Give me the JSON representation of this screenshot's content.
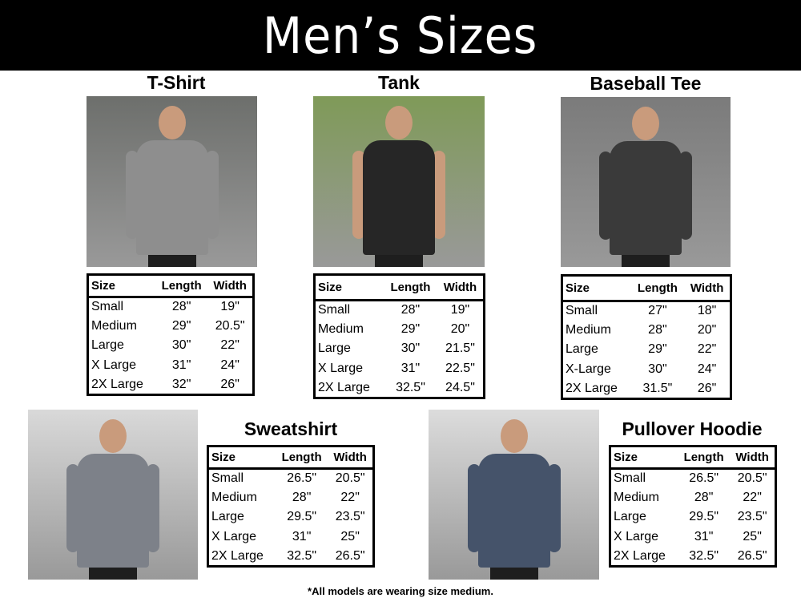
{
  "title": "Men’s Sizes",
  "footnote": "*All models are wearing size medium.",
  "columns": [
    "Size",
    "Length",
    "Width"
  ],
  "sections": [
    {
      "name": "T-Shirt",
      "shirt_color": "#8e8e8e",
      "scene_color": "#6d6f6c",
      "rows": [
        [
          "Small",
          "28\"",
          "19\""
        ],
        [
          "Medium",
          "29\"",
          "20.5\""
        ],
        [
          "Large",
          "30\"",
          "22\""
        ],
        [
          "X Large",
          "31\"",
          "24\""
        ],
        [
          "2X Large",
          "32\"",
          "26\""
        ]
      ]
    },
    {
      "name": "Tank",
      "shirt_color": "#262626",
      "scene_color": "#7f9a58",
      "rows": [
        [
          "Small",
          "28\"",
          "19\""
        ],
        [
          "Medium",
          "29\"",
          "20\""
        ],
        [
          "Large",
          "30\"",
          "21.5\""
        ],
        [
          "X Large",
          "31\"",
          "22.5\""
        ],
        [
          "2X Large",
          "32.5\"",
          "24.5\""
        ]
      ]
    },
    {
      "name": "Baseball Tee",
      "shirt_color": "#3a3a3a",
      "scene_color": "#7b7b7b",
      "rows": [
        [
          "Small",
          "27\"",
          "18\""
        ],
        [
          "Medium",
          "28\"",
          "20\""
        ],
        [
          "Large",
          "29\"",
          "22\""
        ],
        [
          "X-Large",
          "30\"",
          "24\""
        ],
        [
          "2X Large",
          "31.5\"",
          "26\""
        ]
      ]
    },
    {
      "name": "Sweatshirt",
      "shirt_color": "#7d8189",
      "scene_color": "#d9d9d9",
      "rows": [
        [
          "Small",
          "26.5\"",
          "20.5\""
        ],
        [
          "Medium",
          "28\"",
          "22\""
        ],
        [
          "Large",
          "29.5\"",
          "23.5\""
        ],
        [
          "X Large",
          "31\"",
          "25\""
        ],
        [
          "2X Large",
          "32.5\"",
          "26.5\""
        ]
      ]
    },
    {
      "name": "Pullover Hoodie",
      "shirt_color": "#45536a",
      "scene_color": "#dcdcdc",
      "rows": [
        [
          "Small",
          "26.5\"",
          "20.5\""
        ],
        [
          "Medium",
          "28\"",
          "22\""
        ],
        [
          "Large",
          "29.5\"",
          "23.5\""
        ],
        [
          "X Large",
          "31\"",
          "25\""
        ],
        [
          "2X Large",
          "32.5\"",
          "26.5\""
        ]
      ]
    }
  ]
}
